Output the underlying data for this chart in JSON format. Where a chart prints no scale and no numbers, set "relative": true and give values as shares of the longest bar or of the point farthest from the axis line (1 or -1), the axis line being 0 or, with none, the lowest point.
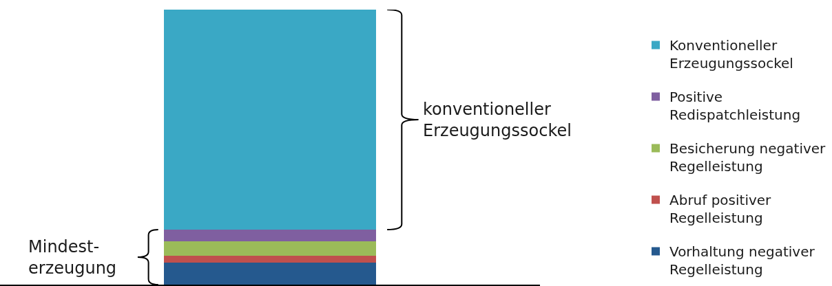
{
  "chart_data": {
    "type": "bar",
    "stacked": true,
    "relative": true,
    "categories": [
      null
    ],
    "series": [
      {
        "name": "Vorhaltung negativer Regelleistung",
        "color": "#25598e",
        "values": [
          0.08
        ]
      },
      {
        "name": "Abruf positiver Regelleistung",
        "color": "#c0504d",
        "values": [
          0.024
        ]
      },
      {
        "name": "Besicherung negativer Regelleistung",
        "color": "#9bbb59",
        "values": [
          0.053
        ]
      },
      {
        "name": "Positive Redispatchleistung",
        "color": "#7f5fa0",
        "values": [
          0.043
        ]
      },
      {
        "name": "Konventioneller Erzeugungssockel",
        "color": "#3aa8c5",
        "values": [
          0.8
        ]
      }
    ],
    "annotations": [
      "konventioneller Erzeugungssockel",
      "Mindest-erzeugung"
    ],
    "legend": "right"
  }
}
